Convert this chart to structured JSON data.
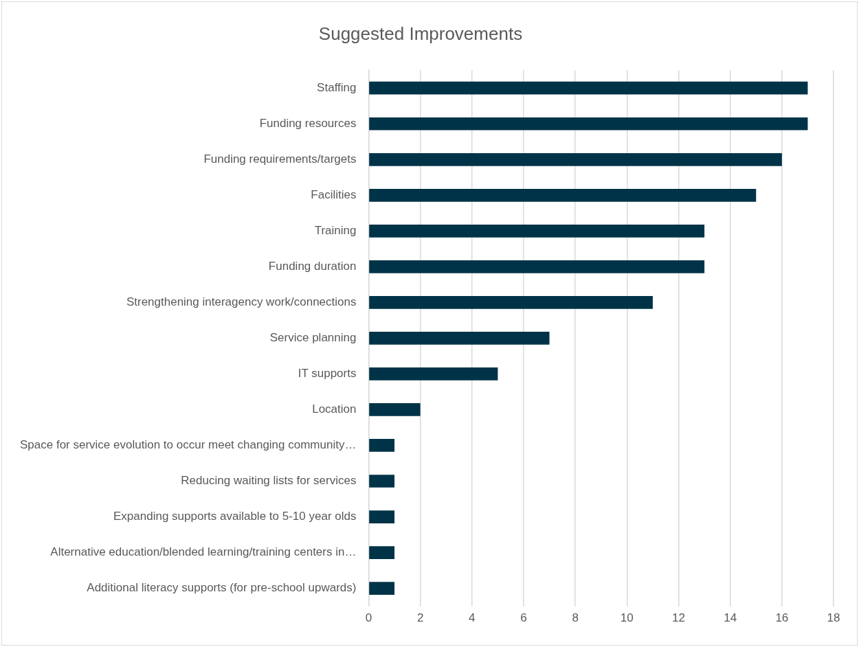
{
  "chart_data": {
    "type": "bar",
    "orientation": "horizontal",
    "title": "Suggested Improvements",
    "categories": [
      "Staffing",
      "Funding resources",
      "Funding requirements/targets",
      "Facilities",
      "Training",
      "Funding duration",
      "Strengthening interagency work/connections",
      "Service planning",
      "IT supports",
      "Location",
      "Space for service evolution to occur meet changing community…",
      "Reducing waiting lists for services",
      "Expanding supports available to 5-10 year olds",
      "Alternative education/blended learning/training centers in…",
      "Additional literacy supports (for pre-school upwards)"
    ],
    "values": [
      17,
      17,
      16,
      15,
      13,
      13,
      11,
      7,
      5,
      2,
      1,
      1,
      1,
      1,
      1
    ],
    "color": "#003347",
    "xlim": [
      0,
      18
    ],
    "xticks": [
      0,
      2,
      4,
      6,
      8,
      10,
      12,
      14,
      16,
      18
    ],
    "grid": "x",
    "legend": false
  }
}
